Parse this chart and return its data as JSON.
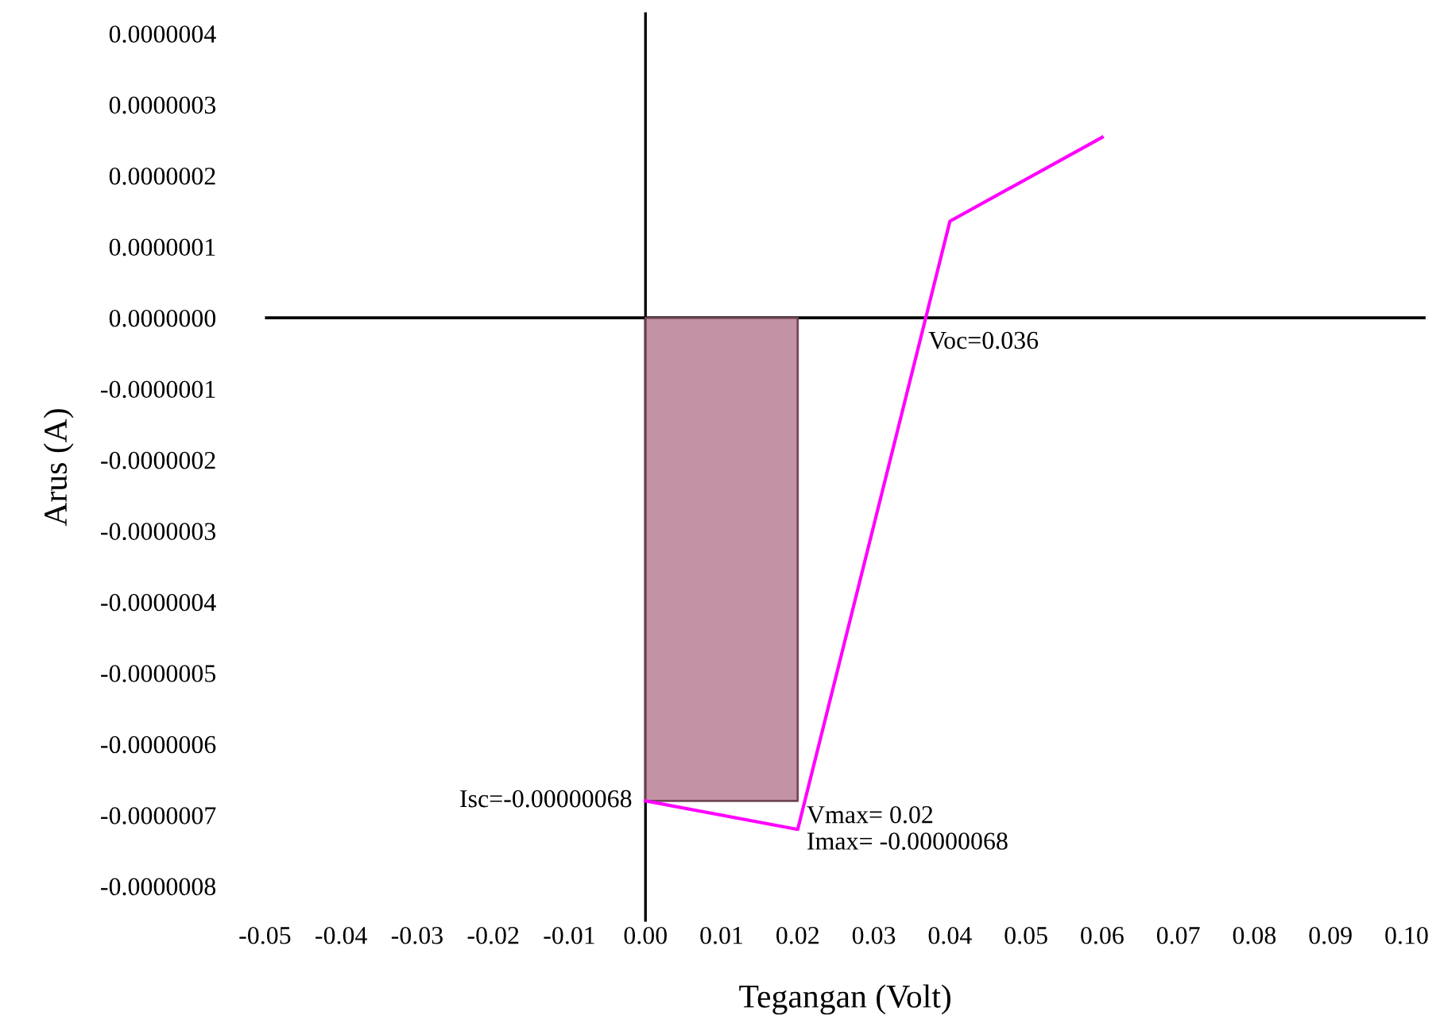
{
  "chart_data": {
    "type": "line",
    "xlabel": "Tegangan (Volt)",
    "ylabel": "Arus (A)",
    "series": [
      {
        "type": "area",
        "color": "#c08ca0",
        "x": [
          0,
          0.02
        ],
        "values": [
          -6.8e-07,
          -6.8e-07
        ]
      },
      {
        "color": "#ff00ff",
        "x": [
          0,
          0.02,
          0.04,
          0.06
        ],
        "values": [
          -6.8e-07,
          -7.2e-07,
          1.36e-07,
          2.54e-07
        ]
      }
    ],
    "xlim": [
      -0.05,
      0.1025
    ],
    "ylim": [
      -8.5e-07,
      4.3e-07
    ],
    "xticks": [
      {
        "value": -0.05,
        "label": "-0.05"
      },
      {
        "value": -0.04,
        "label": "-0.04"
      },
      {
        "value": -0.03,
        "label": "-0.03"
      },
      {
        "value": -0.02,
        "label": "-0.02"
      },
      {
        "value": -0.01,
        "label": "-0.01"
      },
      {
        "value": 0,
        "label": "0.00"
      },
      {
        "value": 0.01,
        "label": "0.01"
      },
      {
        "value": 0.02,
        "label": "0.02"
      },
      {
        "value": 0.03,
        "label": "0.03"
      },
      {
        "value": 0.04,
        "label": "0.04"
      },
      {
        "value": 0.05,
        "label": "0.05"
      },
      {
        "value": 0.06,
        "label": "0.06"
      },
      {
        "value": 0.07,
        "label": "0.07"
      },
      {
        "value": 0.08,
        "label": "0.08"
      },
      {
        "value": 0.09,
        "label": "0.09"
      },
      {
        "value": 0.1,
        "label": "0.10"
      }
    ],
    "yticks": [
      {
        "value": 4e-07,
        "label": "0.0000004"
      },
      {
        "value": 3e-07,
        "label": "0.0000003"
      },
      {
        "value": 2e-07,
        "label": "0.0000002"
      },
      {
        "value": 1e-07,
        "label": "0.0000001"
      },
      {
        "value": 0,
        "label": "0.0000000"
      },
      {
        "value": -1e-07,
        "label": "-0.0000001"
      },
      {
        "value": -2e-07,
        "label": "-0.0000002"
      },
      {
        "value": -3e-07,
        "label": "-0.0000003"
      },
      {
        "value": -4e-07,
        "label": "-0.0000004"
      },
      {
        "value": -5e-07,
        "label": "-0.0000005"
      },
      {
        "value": -6e-07,
        "label": "-0.0000006"
      },
      {
        "value": -7e-07,
        "label": "-0.0000007"
      },
      {
        "value": -8e-07,
        "label": "-0.0000008"
      }
    ],
    "ref_lines": [
      {
        "axis": "y",
        "value": 0,
        "color": "#000000"
      },
      {
        "axis": "x",
        "value": 0,
        "color": "#000000"
      }
    ],
    "annotations": [
      {
        "text": "Voc=0.036",
        "x": 0.036,
        "y": 0
      },
      {
        "text": "Isc=-0.00000068",
        "x": 0,
        "y": -6.8e-07
      },
      {
        "text": "Vmax= 0.02\nImax= -0.00000068",
        "x": 0.02,
        "y": -6.8e-07
      }
    ],
    "grid": false,
    "legend": false,
    "marker": "none",
    "line_style": "solid"
  }
}
